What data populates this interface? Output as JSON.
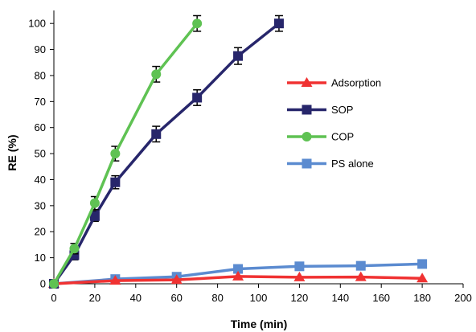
{
  "chart_data": {
    "type": "line",
    "xlabel": "Time (min)",
    "ylabel": "RE (%)",
    "xlim": [
      0,
      200
    ],
    "ylim": [
      0,
      105
    ],
    "xticks": [
      0,
      20,
      40,
      60,
      80,
      100,
      120,
      140,
      160,
      180,
      200
    ],
    "yticks": [
      0,
      10,
      20,
      30,
      40,
      50,
      60,
      70,
      80,
      90,
      100
    ],
    "grid": false,
    "legend_position": "center-right",
    "series": [
      {
        "name": "Adsorption",
        "color": "#f03232",
        "marker": "triangle",
        "x": [
          0,
          30,
          60,
          90,
          120,
          150,
          180
        ],
        "y": [
          0,
          1.2,
          1.5,
          2.8,
          2.5,
          2.6,
          2.1
        ]
      },
      {
        "name": "SOP",
        "color": "#27266b",
        "marker": "square",
        "x": [
          0,
          10,
          20,
          30,
          50,
          70,
          90,
          110
        ],
        "y": [
          0,
          11,
          26,
          39,
          57.5,
          71.5,
          87.5,
          100
        ],
        "err": [
          0,
          1.8,
          2,
          2.5,
          3,
          3,
          3.2,
          3
        ]
      },
      {
        "name": "COP",
        "color": "#5fc253",
        "marker": "circle",
        "x": [
          0,
          10,
          20,
          30,
          50,
          70
        ],
        "y": [
          0,
          13.5,
          31,
          50,
          80.5,
          100
        ],
        "err": [
          0,
          2,
          2.5,
          2.8,
          3,
          3
        ]
      },
      {
        "name": "PS alone",
        "color": "#5b8bd0",
        "marker": "square",
        "x": [
          0,
          30,
          60,
          90,
          120,
          150,
          180
        ],
        "y": [
          0,
          1.8,
          2.7,
          5.7,
          6.7,
          6.9,
          7.6
        ]
      }
    ]
  }
}
